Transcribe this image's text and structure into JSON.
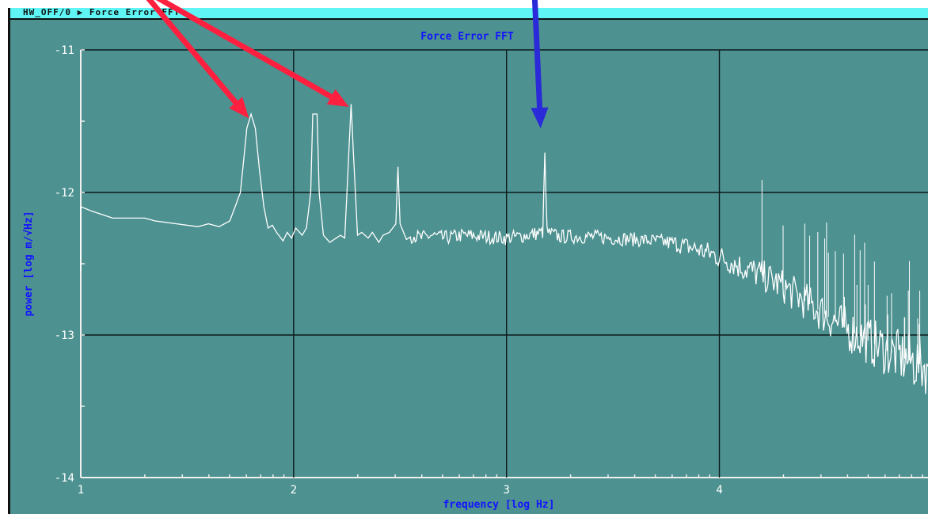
{
  "window": {
    "title": "HW_OFF/0 ▶ Force Error FFT",
    "colors": {
      "background": "#4d9190",
      "titlebar": "#5ff5f5",
      "trace": "#ffffff",
      "label_text": "#1414ff",
      "red_arrow": "#ff1f3f",
      "blue_arrow": "#2a2ad8"
    }
  },
  "chart_data": {
    "type": "line",
    "title": "Force Error FFT",
    "xlabel": "frequency [log Hz]",
    "ylabel": "power [log m/√Hz]",
    "xlim": [
      1,
      4.98
    ],
    "ylim": [
      -14,
      -11
    ],
    "x_scale": "log",
    "y_scale": "log",
    "grid": true,
    "x_ticks": [
      {
        "value": 1,
        "label": "1"
      },
      {
        "value": 2,
        "label": "2"
      },
      {
        "value": 3,
        "label": "3"
      },
      {
        "value": 4,
        "label": "4"
      }
    ],
    "y_ticks": [
      {
        "value": -11,
        "label": "-11"
      },
      {
        "value": -12,
        "label": "-12"
      },
      {
        "value": -13,
        "label": "-13"
      },
      {
        "value": -14,
        "label": "-14"
      }
    ],
    "series": [
      {
        "color": "#ffffff",
        "points": [
          [
            1.0,
            -12.55
          ],
          [
            1.0,
            -12.1
          ],
          [
            1.05,
            -12.13
          ],
          [
            1.15,
            -12.18
          ],
          [
            1.3,
            -12.18
          ],
          [
            1.35,
            -12.2
          ],
          [
            1.45,
            -12.22
          ],
          [
            1.55,
            -12.24
          ],
          [
            1.6,
            -12.22
          ],
          [
            1.65,
            -12.24
          ],
          [
            1.7,
            -12.2
          ],
          [
            1.75,
            -12.0
          ],
          [
            1.78,
            -11.55
          ],
          [
            1.8,
            -11.45
          ],
          [
            1.82,
            -11.55
          ],
          [
            1.84,
            -11.85
          ],
          [
            1.86,
            -12.1
          ],
          [
            1.88,
            -12.25
          ],
          [
            1.9,
            -12.23
          ],
          [
            1.92,
            -12.28
          ],
          [
            1.95,
            -12.34
          ],
          [
            1.97,
            -12.28
          ],
          [
            1.99,
            -12.32
          ],
          [
            2.01,
            -12.25
          ],
          [
            2.04,
            -12.3
          ],
          [
            2.06,
            -12.25
          ],
          [
            2.08,
            -12.0
          ],
          [
            2.09,
            -11.45
          ],
          [
            2.11,
            -11.45
          ],
          [
            2.12,
            -12.0
          ],
          [
            2.14,
            -12.3
          ],
          [
            2.17,
            -12.35
          ],
          [
            2.19,
            -12.33
          ],
          [
            2.22,
            -12.3
          ],
          [
            2.24,
            -12.32
          ],
          [
            2.26,
            -11.7
          ],
          [
            2.27,
            -11.38
          ],
          [
            2.28,
            -11.7
          ],
          [
            2.3,
            -12.3
          ],
          [
            2.32,
            -12.28
          ],
          [
            2.35,
            -12.32
          ],
          [
            2.37,
            -12.28
          ],
          [
            2.4,
            -12.35
          ],
          [
            2.42,
            -12.3
          ],
          [
            2.45,
            -12.28
          ],
          [
            2.48,
            -12.22
          ],
          [
            2.49,
            -11.82
          ],
          [
            2.5,
            -12.22
          ],
          [
            2.53,
            -12.33
          ],
          [
            2.56,
            -12.3
          ],
          [
            2.6,
            -12.32
          ],
          [
            2.65,
            -12.3
          ],
          [
            2.7,
            -12.32
          ],
          [
            2.8,
            -12.3
          ],
          [
            2.9,
            -12.31
          ],
          [
            3.0,
            -12.32
          ],
          [
            3.1,
            -12.3
          ],
          [
            3.17,
            -12.28
          ],
          [
            3.18,
            -11.72
          ],
          [
            3.19,
            -12.28
          ],
          [
            3.25,
            -12.31
          ],
          [
            3.4,
            -12.31
          ],
          [
            3.5,
            -12.32
          ],
          [
            3.6,
            -12.33
          ],
          [
            3.7,
            -12.34
          ],
          [
            3.8,
            -12.36
          ],
          [
            3.9,
            -12.4
          ],
          [
            4.0,
            -12.45
          ],
          [
            4.1,
            -12.52
          ],
          [
            4.2,
            -12.58
          ],
          [
            4.3,
            -12.66
          ],
          [
            4.4,
            -12.76
          ],
          [
            4.5,
            -12.86
          ],
          [
            4.6,
            -12.96
          ],
          [
            4.7,
            -13.04
          ],
          [
            4.8,
            -13.12
          ],
          [
            4.86,
            -13.16
          ],
          [
            4.93,
            -13.2
          ],
          [
            4.98,
            -13.22
          ]
        ]
      }
    ],
    "annotations": [
      {
        "type": "arrow",
        "color": "#ff1f3f",
        "target_x": 1.79,
        "target_y": -11.48
      },
      {
        "type": "arrow",
        "color": "#ff1f3f",
        "target_x": 2.26,
        "target_y": -11.4
      },
      {
        "type": "arrow",
        "color": "#2a2ad8",
        "target_x": 3.16,
        "target_y": -11.55
      }
    ]
  }
}
